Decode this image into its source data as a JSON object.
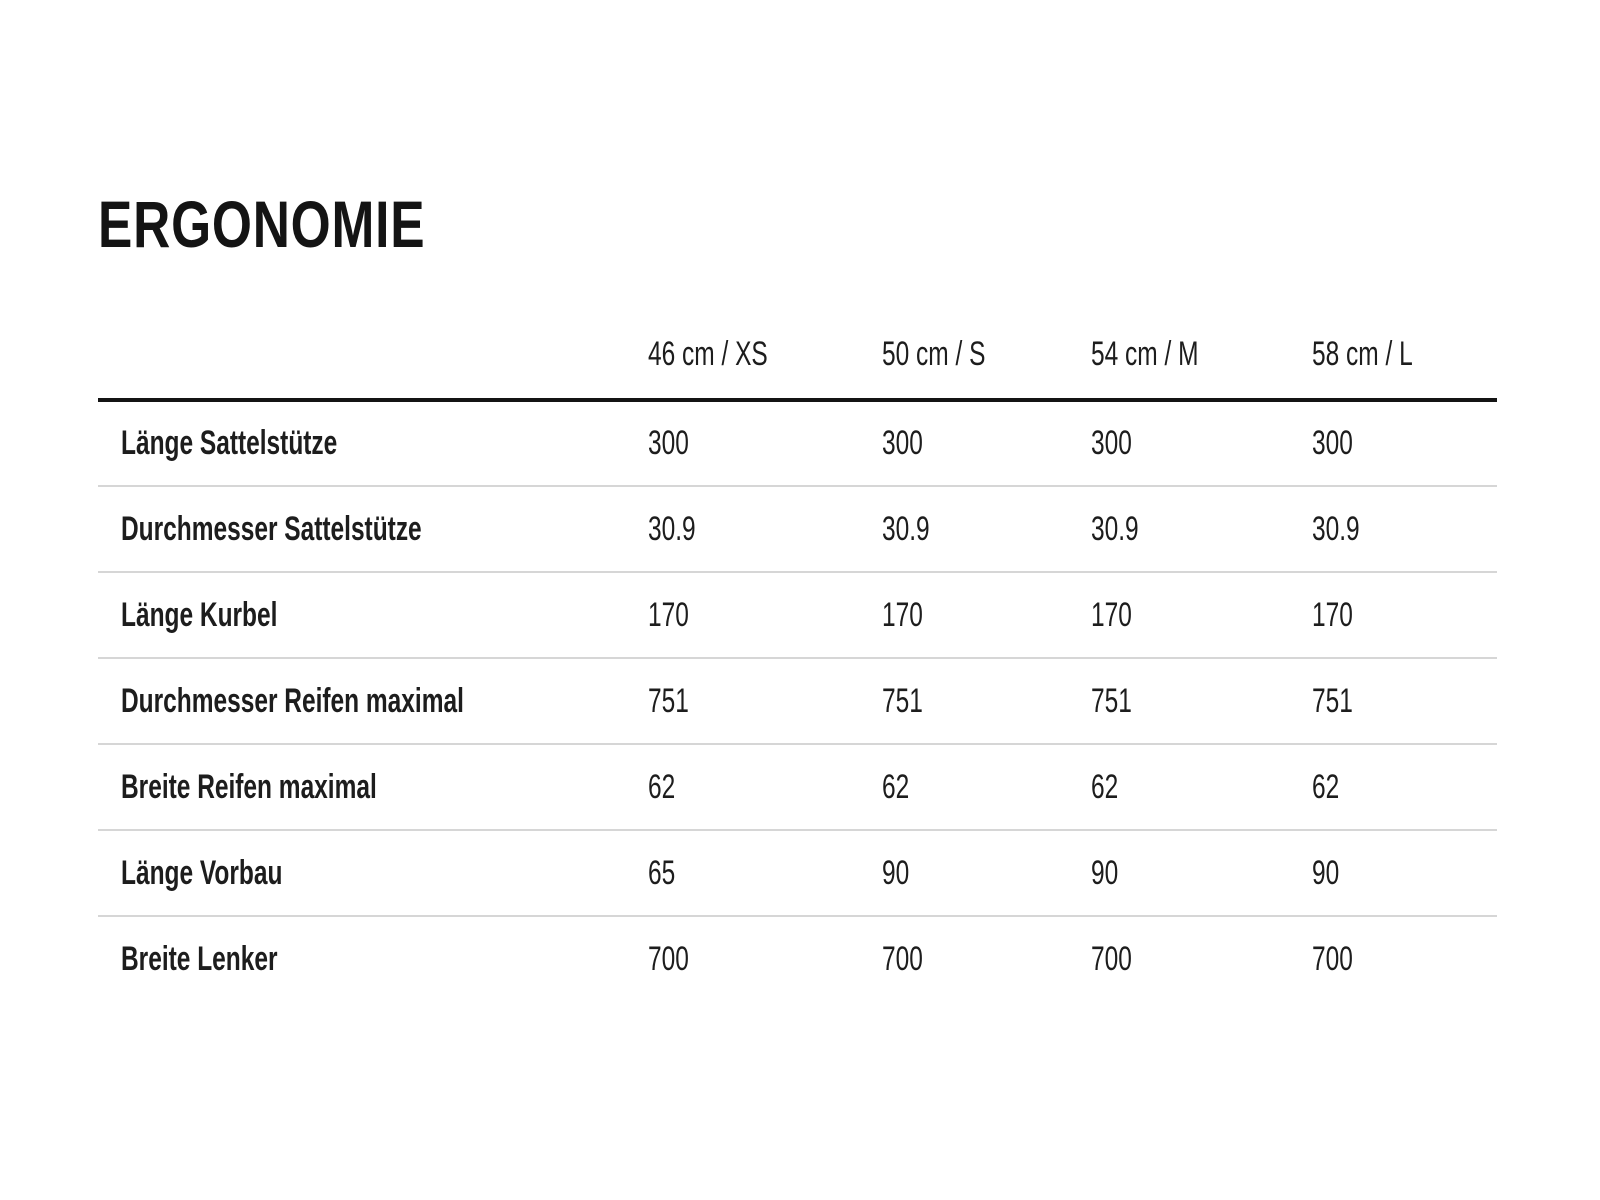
{
  "page": {
    "title": "ERGONOMIE",
    "background_color": "#ffffff",
    "text_color": "#1d1d1d",
    "header_rule_color": "#141414",
    "divider_color": "#d6d6d6"
  },
  "table": {
    "columns": [
      "46 cm / XS",
      "50 cm / S",
      "54 cm / M",
      "58 cm / L"
    ],
    "rows": [
      {
        "label": "Länge Sattelstütze",
        "values": [
          "300",
          "300",
          "300",
          "300"
        ]
      },
      {
        "label": "Durchmesser Sattelstütze",
        "values": [
          "30.9",
          "30.9",
          "30.9",
          "30.9"
        ]
      },
      {
        "label": "Länge Kurbel",
        "values": [
          "170",
          "170",
          "170",
          "170"
        ]
      },
      {
        "label": "Durchmesser Reifen maximal",
        "values": [
          "751",
          "751",
          "751",
          "751"
        ]
      },
      {
        "label": "Breite Reifen maximal",
        "values": [
          "62",
          "62",
          "62",
          "62"
        ]
      },
      {
        "label": "Länge Vorbau",
        "values": [
          "65",
          "90",
          "90",
          "90"
        ]
      },
      {
        "label": "Breite Lenker",
        "values": [
          "700",
          "700",
          "700",
          "700"
        ]
      }
    ]
  },
  "chart_data": {
    "type": "table",
    "title": "ERGONOMIE",
    "columns": [
      "",
      "46 cm / XS",
      "50 cm / S",
      "54 cm / M",
      "58 cm / L"
    ],
    "rows": [
      [
        "Länge Sattelstütze",
        300,
        300,
        300,
        300
      ],
      [
        "Durchmesser Sattelstütze",
        30.9,
        30.9,
        30.9,
        30.9
      ],
      [
        "Länge Kurbel",
        170,
        170,
        170,
        170
      ],
      [
        "Durchmesser Reifen maximal",
        751,
        751,
        751,
        751
      ],
      [
        "Breite Reifen maximal",
        62,
        62,
        62,
        62
      ],
      [
        "Länge Vorbau",
        65,
        90,
        90,
        90
      ],
      [
        "Breite Lenker",
        700,
        700,
        700,
        700
      ]
    ]
  }
}
